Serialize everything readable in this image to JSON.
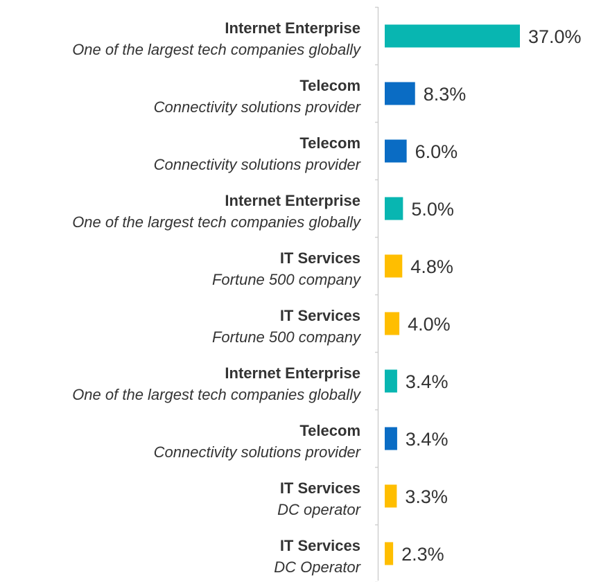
{
  "chart_data": {
    "type": "bar",
    "orientation": "horizontal",
    "categories": [
      {
        "title": "Internet Enterprise",
        "subtitle": "One of the largest tech companies globally"
      },
      {
        "title": "Telecom",
        "subtitle": "Connectivity solutions provider"
      },
      {
        "title": "Telecom",
        "subtitle": "Connectivity solutions provider"
      },
      {
        "title": "Internet Enterprise",
        "subtitle": "One of the largest tech companies globally"
      },
      {
        "title": "IT Services",
        "subtitle": "Fortune 500 company"
      },
      {
        "title": "IT Services",
        "subtitle": "Fortune 500 company"
      },
      {
        "title": "Internet Enterprise",
        "subtitle": "One of the largest tech companies globally"
      },
      {
        "title": "Telecom",
        "subtitle": "Connectivity solutions provider"
      },
      {
        "title": "IT Services",
        "subtitle": "DC operator"
      },
      {
        "title": "IT Services",
        "subtitle": "DC Operator"
      }
    ],
    "values": [
      37.0,
      8.3,
      6.0,
      5.0,
      4.8,
      4.0,
      3.4,
      3.4,
      3.3,
      2.3
    ],
    "value_labels": [
      "37.0%",
      "8.3%",
      "6.0%",
      "5.0%",
      "4.8%",
      "4.0%",
      "3.4%",
      "3.4%",
      "3.3%",
      "2.3%"
    ],
    "xlim": [
      0,
      37.0
    ],
    "grid": false,
    "colors": {
      "Internet Enterprise": "#08B6B1",
      "Telecom": "#0A6CC4",
      "IT Services": "#FFBE00",
      "axis": "#d0d0d0"
    }
  }
}
